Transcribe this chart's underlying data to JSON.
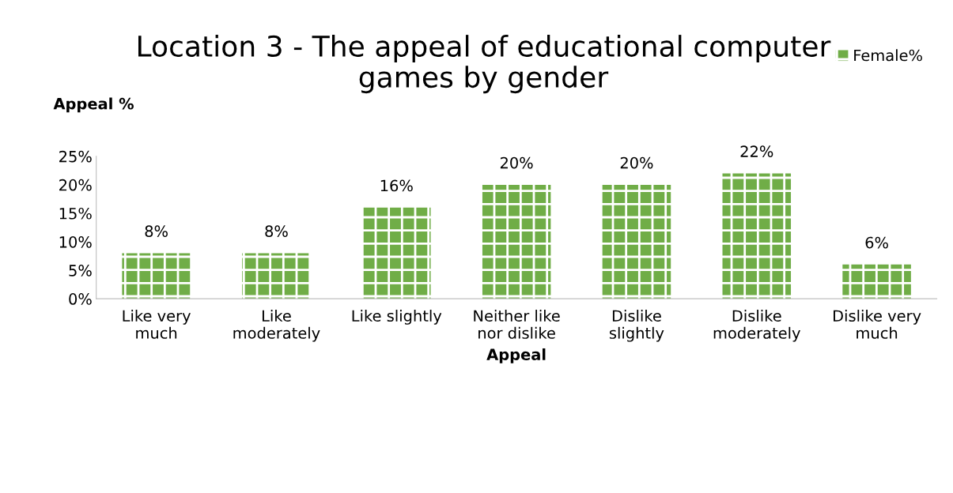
{
  "chart_data": {
    "type": "bar",
    "title": "Location 3 - The appeal of educational computer\ngames by gender",
    "xlabel": "Appeal",
    "ylabel": "Appeal %",
    "categories": [
      "Like very\nmuch",
      "Like\nmoderately",
      "Like slightly",
      "Neither like\nnor dislike",
      "Dislike\nslightly",
      "Dislike\nmoderately",
      "Dislike very\nmuch"
    ],
    "series": [
      {
        "name": "Female%",
        "color": "#70ad47",
        "values": [
          8,
          8,
          16,
          20,
          20,
          22,
          6
        ],
        "value_labels": [
          "8%",
          "8%",
          "16%",
          "20%",
          "20%",
          "22%",
          "6%"
        ]
      }
    ],
    "ylim": [
      0,
      25
    ],
    "yticks": [
      {
        "value": 0,
        "label": "0%"
      },
      {
        "value": 5,
        "label": "5%"
      },
      {
        "value": 10,
        "label": "10%"
      },
      {
        "value": 15,
        "label": "15%"
      },
      {
        "value": 20,
        "label": "20%"
      },
      {
        "value": 25,
        "label": "25%"
      }
    ],
    "grid": false,
    "legend": "top right"
  }
}
